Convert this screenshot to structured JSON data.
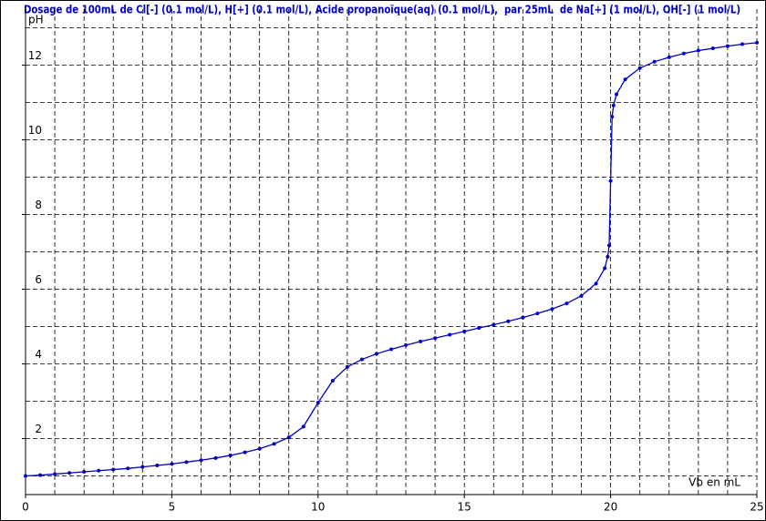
{
  "chart_data": {
    "type": "line",
    "title": "Dosage de 100mL de Cl[-] (0.1 mol/L), H[+] (0.1 mol/L), Acide propanoïque(aq) (0.1 mol/L),  par 25mL  de Na[+] (1 mol/L), OH[-] (1 mol/L)",
    "x_label": "Vb en mL",
    "y_label": "pH",
    "x": [
      0,
      0.5,
      1,
      1.5,
      2,
      2.5,
      3,
      3.5,
      4,
      4.5,
      5,
      5.5,
      6,
      6.5,
      7,
      7.5,
      8,
      8.5,
      9,
      9.5,
      10,
      10.5,
      11,
      11.5,
      12,
      12.5,
      13,
      13.5,
      14,
      14.5,
      15,
      15.5,
      16,
      16.5,
      17,
      17.5,
      18,
      18.5,
      19,
      19.5,
      19.8,
      19.9,
      19.95,
      20,
      20.05,
      20.1,
      20.2,
      20.5,
      21,
      21.5,
      22,
      22.5,
      23,
      23.5,
      24,
      24.5,
      25
    ],
    "values": [
      1.0,
      1.02,
      1.05,
      1.08,
      1.11,
      1.14,
      1.17,
      1.2,
      1.24,
      1.28,
      1.32,
      1.37,
      1.42,
      1.48,
      1.55,
      1.63,
      1.73,
      1.86,
      2.03,
      2.32,
      2.96,
      3.55,
      3.92,
      4.12,
      4.27,
      4.39,
      4.5,
      4.6,
      4.69,
      4.78,
      4.87,
      4.96,
      5.05,
      5.14,
      5.24,
      5.35,
      5.47,
      5.62,
      5.82,
      6.15,
      6.56,
      6.87,
      7.17,
      8.9,
      10.62,
      10.92,
      11.22,
      11.62,
      11.92,
      12.09,
      12.21,
      12.31,
      12.39,
      12.45,
      12.51,
      12.56,
      12.6
    ],
    "color": "#0000cc",
    "xlim": [
      0,
      25
    ],
    "ylim": [
      0.5,
      13.5
    ],
    "xticks": [
      0,
      5,
      10,
      15,
      20,
      25
    ],
    "yticks": [
      2,
      4,
      6,
      8,
      10,
      12
    ],
    "x_minor_ticks": [
      1,
      2,
      3,
      4,
      6,
      7,
      8,
      9,
      11,
      12,
      13,
      14,
      16,
      17,
      18,
      19,
      21,
      22,
      23,
      24
    ],
    "y_minor_ticks": [
      1,
      3,
      5,
      7,
      9,
      11,
      13
    ],
    "grid": true
  }
}
